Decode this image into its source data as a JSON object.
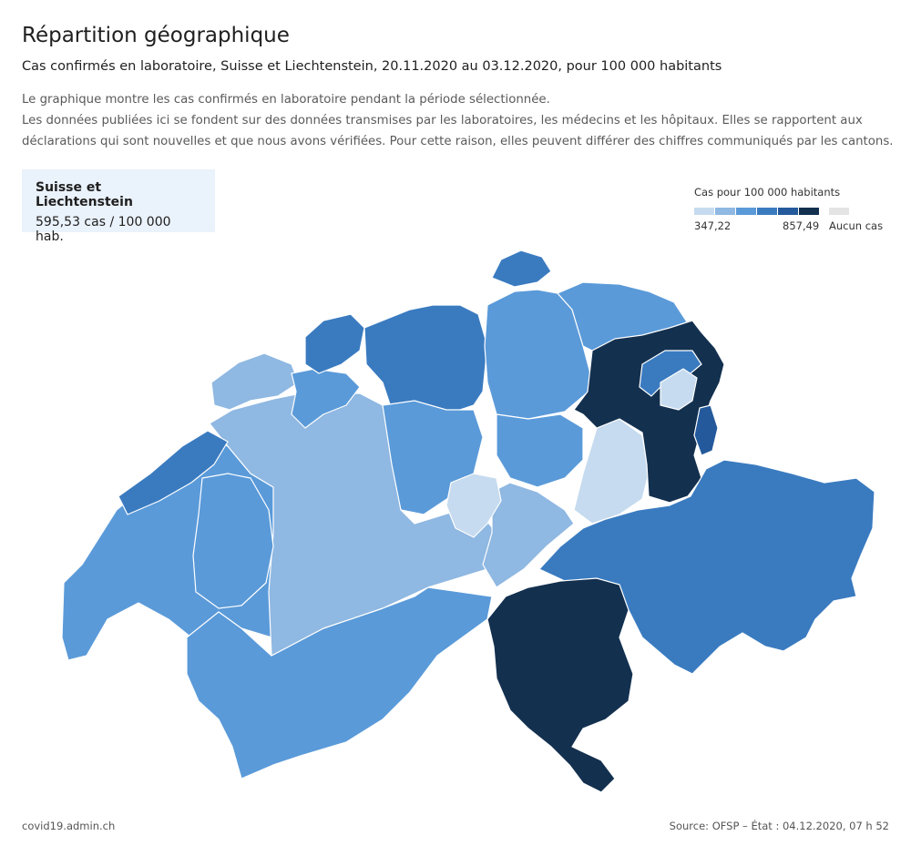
{
  "header": {
    "title": "Répartition géographique",
    "subtitle": "Cas confirmés en laboratoire, Suisse et Liechtenstein, 20.11.2020 au 03.12.2020, pour 100 000 habitants",
    "description": [
      "Le graphique montre les cas confirmés en laboratoire pendant la période sélectionnée.",
      "Les données publiées ici se fondent sur des données transmises par les laboratoires, les médecins et les hôpitaux. Elles se rapportent aux",
      "déclarations qui sont nouvelles et que nous avons vérifiées. Pour cette raison, elles peuvent différer des chiffres communiqués par les cantons."
    ]
  },
  "summary": {
    "region": "Suisse et Liechtenstein",
    "value": "595,53 cas / 100 000 hab."
  },
  "legend": {
    "title": "Cas pour 100 000 habitants",
    "min_label": "347,22",
    "max_label": "857,49",
    "no_cases_label": "Aucun cas",
    "colors": [
      "#c6dbef",
      "#8fb8e2",
      "#5a9ad9",
      "#3a7bc0",
      "#245a9c",
      "#13304f"
    ],
    "no_cases_color": "#e4e4e4"
  },
  "footer": {
    "left": "covid19.admin.ch",
    "right": "Source: OFSP – État : 04.12.2020, 07 h 52"
  }
}
